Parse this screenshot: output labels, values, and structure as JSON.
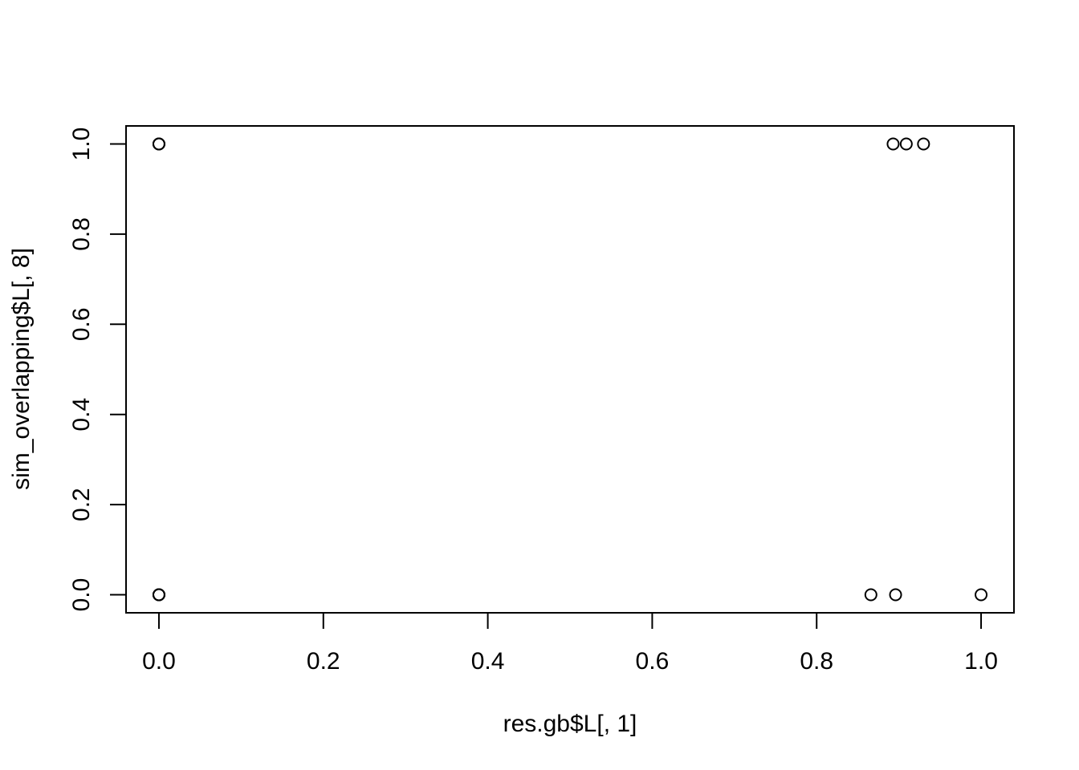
{
  "chart_data": {
    "type": "scatter",
    "title": "",
    "xlabel": "res.gb$L[, 1]",
    "ylabel": "sim_overlapping$L[, 8]",
    "xlim": [
      -0.04,
      1.04
    ],
    "ylim": [
      -0.04,
      1.04
    ],
    "grid": false,
    "marker": "open-circle",
    "x_ticks": [
      0.0,
      0.2,
      0.4,
      0.6,
      0.8,
      1.0
    ],
    "x_tick_labels": [
      "0.0",
      "0.2",
      "0.4",
      "0.6",
      "0.8",
      "1.0"
    ],
    "y_ticks": [
      0.0,
      0.2,
      0.4,
      0.6,
      0.8,
      1.0
    ],
    "y_tick_labels": [
      "0.0",
      "0.2",
      "0.4",
      "0.6",
      "0.8",
      "1.0"
    ],
    "points": [
      {
        "x": 0.0,
        "y": 1.0
      },
      {
        "x": 0.0,
        "y": 1.0
      },
      {
        "x": 0.0,
        "y": 1.0
      },
      {
        "x": 0.0,
        "y": 0.0
      },
      {
        "x": 0.0,
        "y": 0.0
      },
      {
        "x": 0.0,
        "y": 0.0
      },
      {
        "x": 0.0,
        "y": 0.0
      },
      {
        "x": 0.893,
        "y": 1.0
      },
      {
        "x": 0.909,
        "y": 1.0
      },
      {
        "x": 0.93,
        "y": 1.0
      },
      {
        "x": 0.866,
        "y": 0.0
      },
      {
        "x": 0.896,
        "y": 0.0
      },
      {
        "x": 1.0,
        "y": 0.0
      }
    ],
    "colors": {
      "marker": "#000000",
      "axis": "#000000",
      "background": "#ffffff"
    }
  }
}
